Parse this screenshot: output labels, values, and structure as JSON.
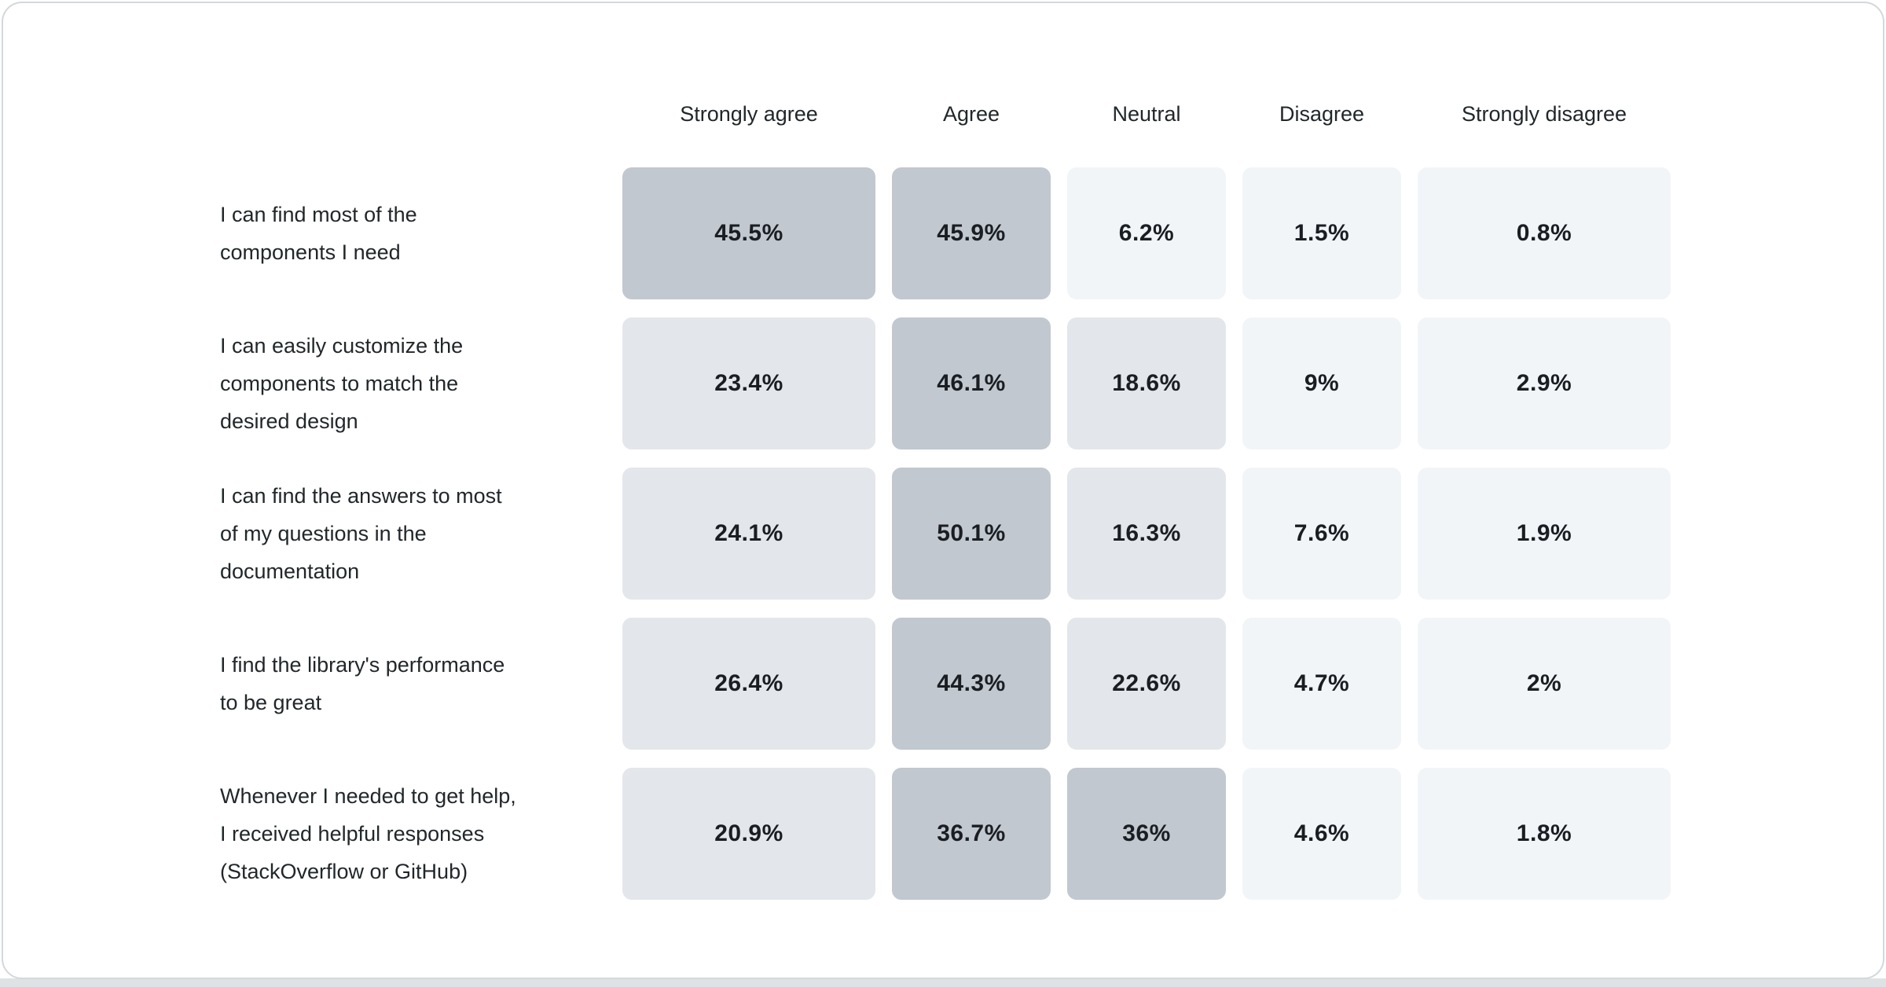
{
  "palette": {
    "high": "#c1c8cf",
    "mid": "#e3e6ea",
    "low": "#f2f5f8"
  },
  "table": {
    "columns": [
      "Strongly agree",
      "Agree",
      "Neutral",
      "Disagree",
      "Strongly disagree"
    ],
    "rows": [
      {
        "label": "I can find most of the\ncomponents I need",
        "cells": [
          {
            "value": "45.5%",
            "color": "#c1c8cf"
          },
          {
            "value": "45.9%",
            "color": "#c1c8cf"
          },
          {
            "value": "6.2%",
            "color": "#f2f5f8"
          },
          {
            "value": "1.5%",
            "color": "#f2f5f8"
          },
          {
            "value": "0.8%",
            "color": "#f2f5f8"
          }
        ]
      },
      {
        "label": "I can easily customize the\ncomponents to match the\ndesired design",
        "cells": [
          {
            "value": "23.4%",
            "color": "#e3e6ea"
          },
          {
            "value": "46.1%",
            "color": "#c1c8cf"
          },
          {
            "value": "18.6%",
            "color": "#e3e6ea"
          },
          {
            "value": "9%",
            "color": "#f2f5f8"
          },
          {
            "value": "2.9%",
            "color": "#f2f5f8"
          }
        ]
      },
      {
        "label": "I can find the answers to most\nof my questions in the\ndocumentation",
        "cells": [
          {
            "value": "24.1%",
            "color": "#e3e6ea"
          },
          {
            "value": "50.1%",
            "color": "#c1c8cf"
          },
          {
            "value": "16.3%",
            "color": "#e3e6ea"
          },
          {
            "value": "7.6%",
            "color": "#f2f5f8"
          },
          {
            "value": "1.9%",
            "color": "#f2f5f8"
          }
        ]
      },
      {
        "label": "I find the library's performance\nto be great",
        "cells": [
          {
            "value": "26.4%",
            "color": "#e3e6ea"
          },
          {
            "value": "44.3%",
            "color": "#c1c8cf"
          },
          {
            "value": "22.6%",
            "color": "#e3e6ea"
          },
          {
            "value": "4.7%",
            "color": "#f2f5f8"
          },
          {
            "value": "2%",
            "color": "#f2f5f8"
          }
        ]
      },
      {
        "label": "Whenever I needed to get help,\nI received helpful responses\n(StackOverflow or GitHub)",
        "cells": [
          {
            "value": "20.9%",
            "color": "#e3e6ea"
          },
          {
            "value": "36.7%",
            "color": "#c1c8cf"
          },
          {
            "value": "36%",
            "color": "#c1c8cf"
          },
          {
            "value": "4.6%",
            "color": "#f2f5f8"
          },
          {
            "value": "1.8%",
            "color": "#f2f5f8"
          }
        ]
      }
    ]
  },
  "chart_data": {
    "type": "heatmap",
    "columns": [
      "Strongly agree",
      "Agree",
      "Neutral",
      "Disagree",
      "Strongly disagree"
    ],
    "rows": [
      "I can find most of the components I need",
      "I can easily customize the components to match the desired design",
      "I can find the answers to most of my questions in the documentation",
      "I find the library's performance to be great",
      "Whenever I needed to get help, I received helpful responses (StackOverflow or GitHub)"
    ],
    "values": [
      [
        45.5,
        45.9,
        6.2,
        1.5,
        0.8
      ],
      [
        23.4,
        46.1,
        18.6,
        9,
        2.9
      ],
      [
        24.1,
        50.1,
        16.3,
        7.6,
        1.9
      ],
      [
        26.4,
        44.3,
        22.6,
        4.7,
        2
      ],
      [
        20.9,
        36.7,
        36,
        4.6,
        1.8
      ]
    ],
    "unit": "%",
    "title": "",
    "legend": "none",
    "color_scale": {
      "low": "#f2f5f8",
      "mid": "#e3e6ea",
      "high": "#c1c8cf"
    }
  }
}
